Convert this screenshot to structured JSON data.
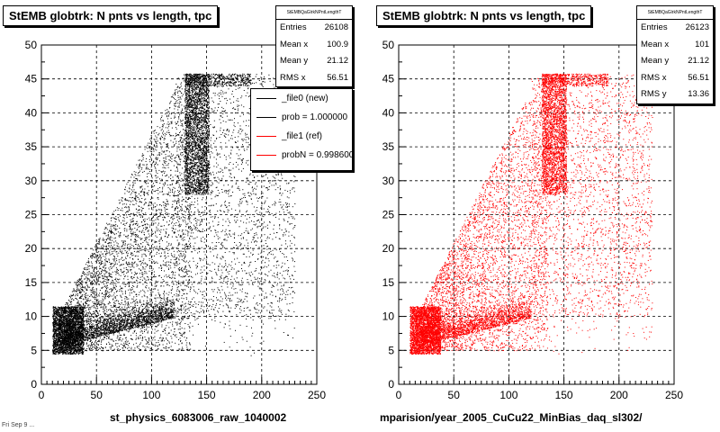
{
  "chart_data": [
    {
      "type": "scatter",
      "title": "StEMB globtrk: N pnts vs length, tpc",
      "xlabel": "st_physics_6083006_raw_1040002",
      "ylabel": "",
      "xlim": [
        0,
        250
      ],
      "ylim": [
        0,
        50
      ],
      "x_ticks": [
        "0",
        "50",
        "100",
        "150",
        "200",
        "250"
      ],
      "y_ticks": [
        "0",
        "5",
        "10",
        "15",
        "20",
        "25",
        "30",
        "35",
        "40",
        "45",
        "50"
      ],
      "grid": true,
      "color": "#000000",
      "stats": {
        "header": "StEMBQaGlrkNPntLengthT",
        "rows": [
          {
            "label": "Entries",
            "value": "26108"
          },
          {
            "label": "Mean x",
            "value": "100.9"
          },
          {
            "label": "Mean y",
            "value": "21.12"
          },
          {
            "label": "RMS x",
            "value": "56.51"
          }
        ]
      },
      "legend": [
        {
          "label": "_file0 (new)",
          "color": "#000000"
        },
        {
          "label": "prob = 1.000000",
          "color": "#000000"
        },
        {
          "label": "_file1 (ref)",
          "color": "#ff0000"
        },
        {
          "label": "probN = 0.998600",
          "color": "#ff0000"
        }
      ],
      "series": [
        {
          "name": "_file0 (new)",
          "entries": 26108,
          "mean_x": 100.9,
          "mean_y": 21.12,
          "rms_x": 56.51
        }
      ]
    },
    {
      "type": "scatter",
      "title": "StEMB globtrk: N pnts vs length, tpc",
      "xlabel": "mparision/year_2005_CuCu22_MinBias_daq_sl302/",
      "ylabel": "",
      "xlim": [
        0,
        250
      ],
      "ylim": [
        0,
        50
      ],
      "x_ticks": [
        "0",
        "50",
        "100",
        "150",
        "200",
        "250"
      ],
      "y_ticks": [
        "0",
        "5",
        "10",
        "15",
        "20",
        "25",
        "30",
        "35",
        "40",
        "45",
        "50"
      ],
      "grid": true,
      "color": "#ff0000",
      "stats": {
        "header": "StEMBQaGlrkNPntLengthT",
        "rows": [
          {
            "label": "Entries",
            "value": "26123"
          },
          {
            "label": "Mean x",
            "value": "101"
          },
          {
            "label": "Mean y",
            "value": "21.12"
          },
          {
            "label": "RMS x",
            "value": "56.51"
          },
          {
            "label": "RMS y",
            "value": "13.36"
          }
        ]
      },
      "series": [
        {
          "name": "_file1 (ref)",
          "entries": 26123,
          "mean_x": 101,
          "mean_y": 21.12,
          "rms_x": 56.51,
          "rms_y": 13.36
        }
      ]
    }
  ],
  "footer": "Fri Sep 9 ..."
}
